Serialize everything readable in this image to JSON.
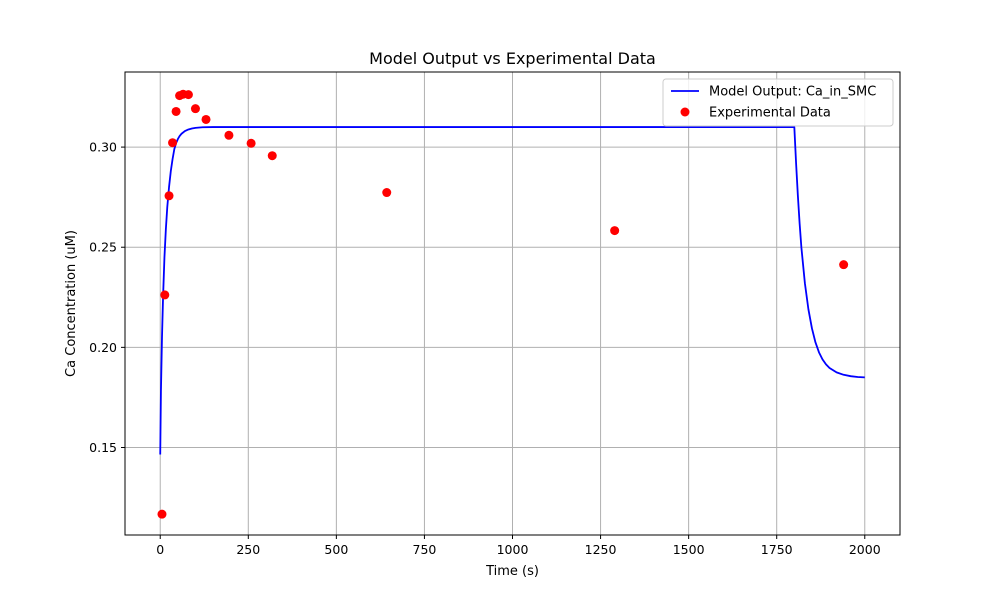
{
  "chart_data": {
    "type": "line",
    "title": "Model Output vs Experimental Data",
    "xlabel": "Time (s)",
    "ylabel": "Ca Concentration (uM)",
    "xlim": [
      -100,
      2100
    ],
    "ylim": [
      0.1063,
      0.3375
    ],
    "x_ticks": [
      0,
      250,
      500,
      750,
      1000,
      1250,
      1500,
      1750,
      2000
    ],
    "x_tick_labels": [
      "0",
      "250",
      "500",
      "750",
      "1000",
      "1250",
      "1500",
      "1750",
      "2000"
    ],
    "y_ticks": [
      0.15,
      0.2,
      0.25,
      0.3
    ],
    "y_tick_labels": [
      "0.15",
      "0.20",
      "0.25",
      "0.30"
    ],
    "grid": true,
    "legend_position": "top-right",
    "series": [
      {
        "name": "Model Output: Ca_in_SMC",
        "kind": "line",
        "color": "#0000ff",
        "x": [
          0,
          2,
          5,
          8,
          12,
          16,
          20,
          25,
          30,
          35,
          40,
          45,
          50,
          55,
          60,
          70,
          80,
          90,
          100,
          120,
          150,
          200,
          400,
          800,
          1200,
          1600,
          1799,
          1800,
          1805,
          1810,
          1815,
          1820,
          1830,
          1840,
          1850,
          1860,
          1870,
          1880,
          1890,
          1900,
          1920,
          1940,
          1960,
          1980,
          2000
        ],
        "y": [
          0.1465,
          0.178,
          0.205,
          0.225,
          0.245,
          0.259,
          0.27,
          0.28,
          0.288,
          0.294,
          0.299,
          0.302,
          0.304,
          0.3055,
          0.3066,
          0.308,
          0.3088,
          0.3093,
          0.3096,
          0.3099,
          0.31,
          0.31,
          0.31,
          0.31,
          0.31,
          0.31,
          0.31,
          0.31,
          0.292,
          0.276,
          0.262,
          0.25,
          0.232,
          0.219,
          0.2095,
          0.2025,
          0.1975,
          0.194,
          0.1915,
          0.1897,
          0.1875,
          0.1863,
          0.1856,
          0.1852,
          0.185
        ]
      },
      {
        "name": "Experimental Data",
        "kind": "scatter",
        "color": "#ff0000",
        "x": [
          5,
          13,
          25,
          35,
          45,
          55,
          65,
          80,
          100,
          130,
          195,
          258,
          318,
          643,
          1290,
          1940
        ],
        "y": [
          0.1167,
          0.2262,
          0.2757,
          0.3022,
          0.3178,
          0.3257,
          0.3264,
          0.3262,
          0.3192,
          0.3138,
          0.3059,
          0.3019,
          0.2957,
          0.2773,
          0.2583,
          0.2413
        ]
      }
    ]
  }
}
